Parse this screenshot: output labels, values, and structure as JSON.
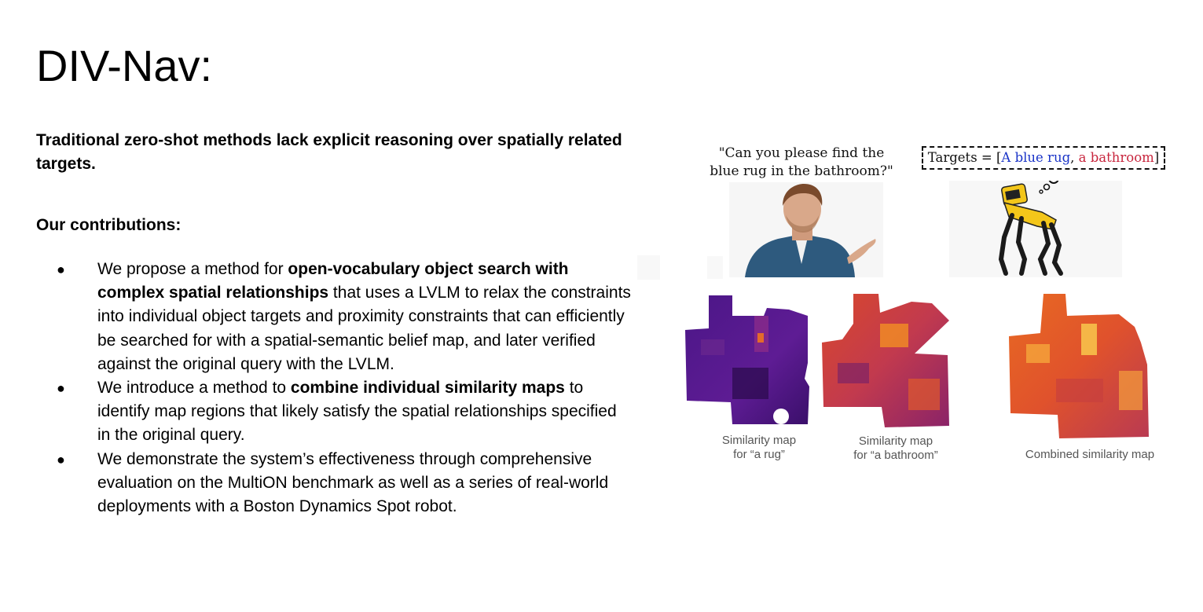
{
  "slide": {
    "title": "DIV-Nav:",
    "subtitle": "Traditional zero-shot methods lack explicit reasoning over spatially related targets.",
    "contributions_heading": "Our contributions:"
  },
  "bullets": [
    {
      "pre": "We propose a method for ",
      "bold": "open-vocabulary object search with complex spatial relationships",
      "post": " that uses a LVLM to relax the constraints into individual object targets and proximity constraints that can efficiently be searched for with a spatial-semantic belief map, and later verified against the original query with the LVLM."
    },
    {
      "pre": "We introduce a method to ",
      "bold": "combine individual similarity maps",
      "post": " to identify map regions that likely satisfy the spatial relationships specified in the original query."
    },
    {
      "pre": "We demonstrate the system’s effectiveness through comprehensive evaluation on the MultiON benchmark as well as a series of real-world deployments with a Boston Dynamics Spot robot.",
      "bold": "",
      "post": ""
    }
  ],
  "figure": {
    "quote_line1": "\"Can you please find the",
    "quote_line2": "blue rug in the bathroom?\"",
    "targets_prefix": "Targets = [",
    "target_1": "A blue rug",
    "target_sep": ", ",
    "target_2": "a bathroom",
    "targets_suffix": "]",
    "captions": {
      "rug_line1": "Similarity map",
      "rug_line2": "for “a rug”",
      "bathroom_line1": "Similarity map",
      "bathroom_line2": "for “a bathroom”",
      "combined": "Combined similarity map"
    },
    "colors": {
      "target_blue": "#1a34c8",
      "target_red": "#c8263e",
      "robot_yellow": "#f3c61a",
      "map_dark": "#5a1a8c",
      "map_mid": "#e3572a",
      "map_bright": "#f5a623"
    },
    "icons": [
      "person-photo",
      "spot-robot-icon",
      "thought-bubble-icon"
    ]
  }
}
